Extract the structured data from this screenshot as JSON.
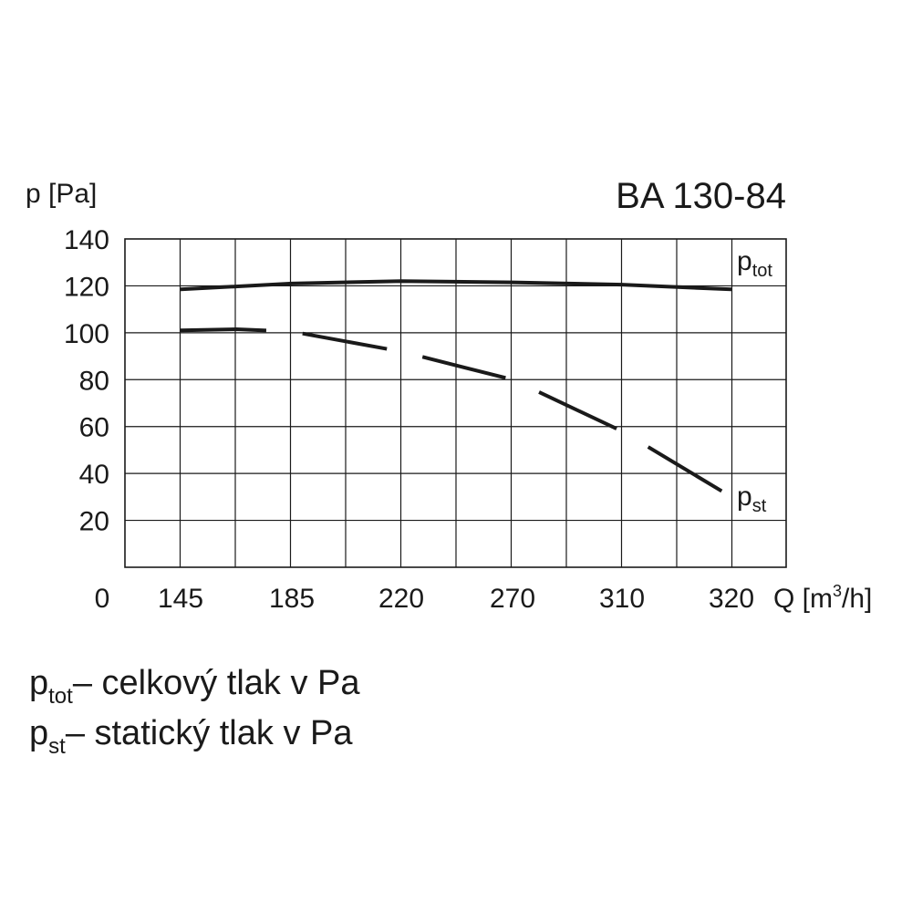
{
  "chart_data": {
    "type": "line",
    "title": "BA 130-84",
    "ylabel": "p [Pa]",
    "xlabel_main": "Q [m",
    "xlabel_sup": "3",
    "xlabel_tail": "/h]",
    "x_ticks": [
      "0",
      "145",
      "185",
      "220",
      "270",
      "310",
      "320"
    ],
    "y_ticks": [
      "140",
      "120",
      "100",
      "80",
      "60",
      "40",
      "20"
    ],
    "ylim": [
      0,
      140
    ],
    "grid": true,
    "x_positions": [
      145,
      185,
      220,
      270,
      310,
      320
    ],
    "series": [
      {
        "name_main": "p",
        "name_sub": "tot",
        "style": "solid",
        "points": [
          [
            145,
            118.5
          ],
          [
            185,
            121
          ],
          [
            220,
            122
          ],
          [
            270,
            121.5
          ],
          [
            310,
            120.5
          ],
          [
            320,
            118.5
          ]
        ]
      },
      {
        "name_main": "p",
        "name_sub": "st",
        "style": "dashed",
        "points": [
          [
            145,
            101
          ],
          [
            165,
            101.5
          ],
          [
            185,
            100.5
          ],
          [
            220,
            92
          ],
          [
            270,
            80
          ],
          [
            310,
            58
          ],
          [
            320,
            30
          ]
        ]
      }
    ]
  },
  "legend": [
    {
      "sym": "p",
      "sub": "tot",
      "text": "– celkový tlak v Pa"
    },
    {
      "sym": "p",
      "sub": "st",
      "text": "– statický  tlak v Pa"
    }
  ]
}
